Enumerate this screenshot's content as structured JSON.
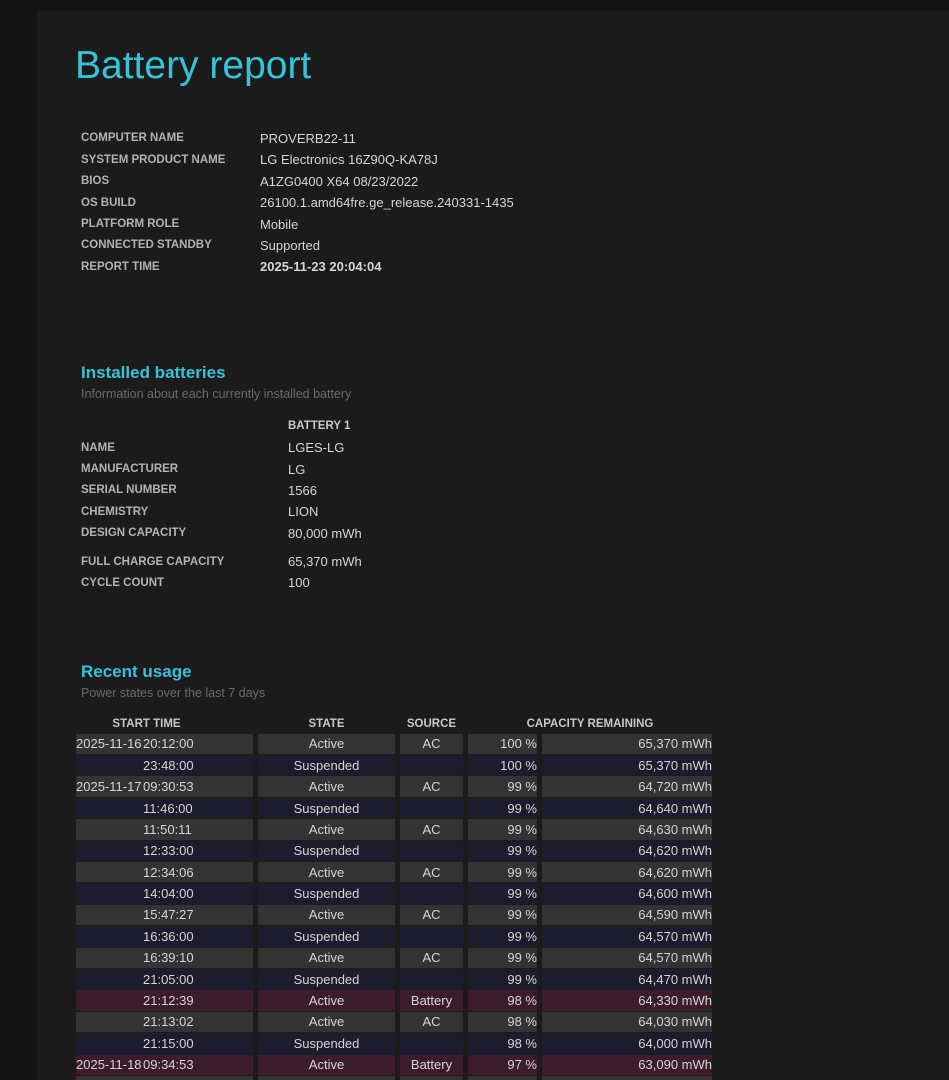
{
  "page": {
    "title": "Battery report",
    "accent_color": "#36c3da",
    "background_color": "#1b1b1b"
  },
  "system_info": {
    "rows": [
      {
        "label": "COMPUTER NAME",
        "value": "PROVERB22-11",
        "bold": false
      },
      {
        "label": "SYSTEM PRODUCT NAME",
        "value": "LG Electronics 16Z90Q-KA78J",
        "bold": false
      },
      {
        "label": "BIOS",
        "value": "A1ZG0400 X64 08/23/2022",
        "bold": false
      },
      {
        "label": "OS BUILD",
        "value": "26100.1.amd64fre.ge_release.240331-1435",
        "bold": false
      },
      {
        "label": "PLATFORM ROLE",
        "value": "Mobile",
        "bold": false
      },
      {
        "label": "CONNECTED STANDBY",
        "value": "Supported",
        "bold": false
      },
      {
        "label": "REPORT TIME",
        "value": "2025-11-23  20:04:04",
        "bold": true
      }
    ]
  },
  "installed_batteries": {
    "heading": "Installed batteries",
    "subtitle": "Information about each currently installed battery",
    "column_header": "BATTERY 1",
    "rows": [
      {
        "label": "NAME",
        "value": "LGES-LG",
        "gap_before": false
      },
      {
        "label": "MANUFACTURER",
        "value": "LG",
        "gap_before": false
      },
      {
        "label": "SERIAL NUMBER",
        "value": "1566",
        "gap_before": false
      },
      {
        "label": "CHEMISTRY",
        "value": "LION",
        "gap_before": false
      },
      {
        "label": "DESIGN CAPACITY",
        "value": "80,000 mWh",
        "gap_before": false
      },
      {
        "label": "FULL CHARGE CAPACITY",
        "value": "65,370 mWh",
        "gap_before": true
      },
      {
        "label": "CYCLE COUNT",
        "value": "100",
        "gap_before": false
      }
    ]
  },
  "recent_usage": {
    "heading": "Recent usage",
    "subtitle": "Power states over the last 7 days",
    "headers": {
      "start_time": "START TIME",
      "state": "STATE",
      "source": "SOURCE",
      "capacity_remaining": "CAPACITY REMAINING"
    },
    "row_colors": {
      "active": "#333333",
      "suspended": "#1c1c2e",
      "battery": "#3c1b2b"
    },
    "rows": [
      {
        "date": "2025-11-16",
        "time": "20:12:00",
        "state": "Active",
        "source": "AC",
        "percent": "100 %",
        "mwh": "65,370 mWh",
        "type": "active"
      },
      {
        "date": "",
        "time": "23:48:00",
        "state": "Suspended",
        "source": "",
        "percent": "100 %",
        "mwh": "65,370 mWh",
        "type": "suspended"
      },
      {
        "date": "2025-11-17",
        "time": "09:30:53",
        "state": "Active",
        "source": "AC",
        "percent": "99 %",
        "mwh": "64,720 mWh",
        "type": "active"
      },
      {
        "date": "",
        "time": "11:46:00",
        "state": "Suspended",
        "source": "",
        "percent": "99 %",
        "mwh": "64,640 mWh",
        "type": "suspended"
      },
      {
        "date": "",
        "time": "11:50:11",
        "state": "Active",
        "source": "AC",
        "percent": "99 %",
        "mwh": "64,630 mWh",
        "type": "active"
      },
      {
        "date": "",
        "time": "12:33:00",
        "state": "Suspended",
        "source": "",
        "percent": "99 %",
        "mwh": "64,620 mWh",
        "type": "suspended"
      },
      {
        "date": "",
        "time": "12:34:06",
        "state": "Active",
        "source": "AC",
        "percent": "99 %",
        "mwh": "64,620 mWh",
        "type": "active"
      },
      {
        "date": "",
        "time": "14:04:00",
        "state": "Suspended",
        "source": "",
        "percent": "99 %",
        "mwh": "64,600 mWh",
        "type": "suspended"
      },
      {
        "date": "",
        "time": "15:47:27",
        "state": "Active",
        "source": "AC",
        "percent": "99 %",
        "mwh": "64,590 mWh",
        "type": "active"
      },
      {
        "date": "",
        "time": "16:36:00",
        "state": "Suspended",
        "source": "",
        "percent": "99 %",
        "mwh": "64,570 mWh",
        "type": "suspended"
      },
      {
        "date": "",
        "time": "16:39:10",
        "state": "Active",
        "source": "AC",
        "percent": "99 %",
        "mwh": "64,570 mWh",
        "type": "active"
      },
      {
        "date": "",
        "time": "21:05:00",
        "state": "Suspended",
        "source": "",
        "percent": "99 %",
        "mwh": "64,470 mWh",
        "type": "suspended"
      },
      {
        "date": "",
        "time": "21:12:39",
        "state": "Active",
        "source": "Battery",
        "percent": "98 %",
        "mwh": "64,330 mWh",
        "type": "battery"
      },
      {
        "date": "",
        "time": "21:13:02",
        "state": "Active",
        "source": "AC",
        "percent": "98 %",
        "mwh": "64,030 mWh",
        "type": "active"
      },
      {
        "date": "",
        "time": "21:15:00",
        "state": "Suspended",
        "source": "",
        "percent": "98 %",
        "mwh": "64,000 mWh",
        "type": "suspended"
      },
      {
        "date": "2025-11-18",
        "time": "09:34:53",
        "state": "Active",
        "source": "Battery",
        "percent": "97 %",
        "mwh": "63,090 mWh",
        "type": "battery"
      },
      {
        "date": "",
        "time": "",
        "state": "",
        "source": "",
        "percent": "",
        "mwh": "",
        "type": "active"
      }
    ]
  }
}
